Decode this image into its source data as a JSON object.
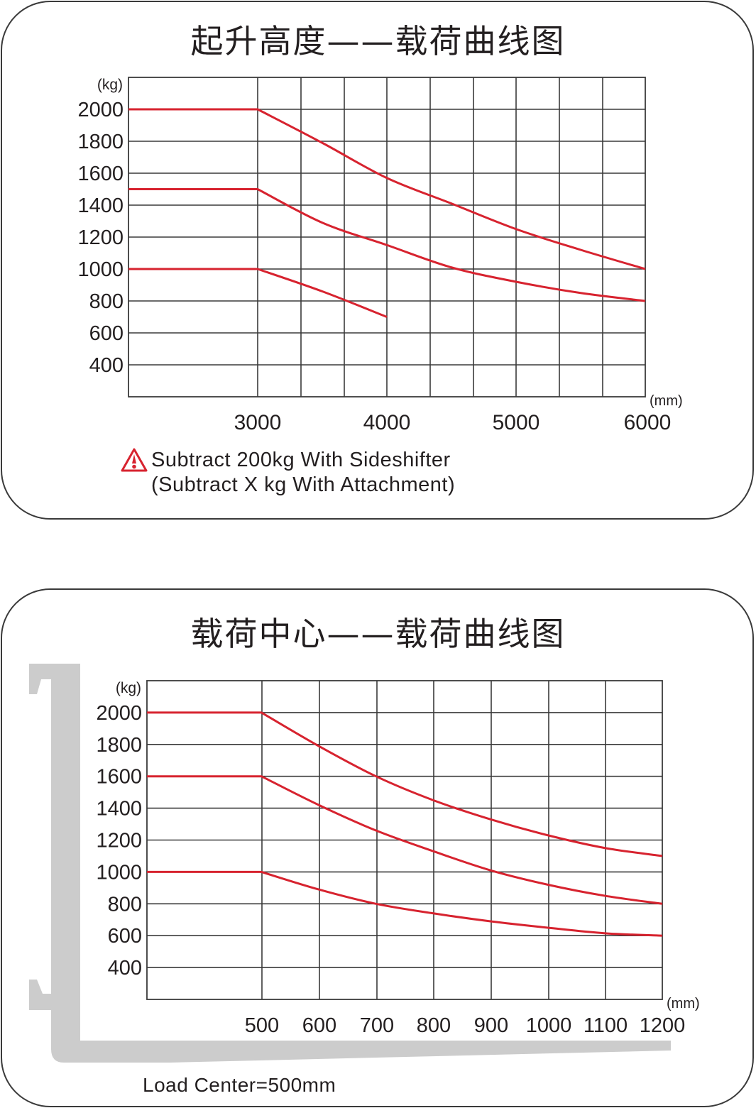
{
  "charts": [
    {
      "title": "起升高度——载荷曲线图",
      "y_unit": "(kg)",
      "x_unit": "(mm)",
      "y_ticks": [
        "2000",
        "1800",
        "1600",
        "1400",
        "1200",
        "1000",
        "800",
        "600",
        "400"
      ],
      "x_ticks": [
        "3000",
        "4000",
        "5000",
        "6000"
      ],
      "note_line1": "Subtract 200kg With Sideshifter",
      "note_line2": "(Subtract X kg With Attachment)"
    },
    {
      "title": "载荷中心——载荷曲线图",
      "y_unit": "(kg)",
      "x_unit": "(mm)",
      "y_ticks": [
        "2000",
        "1800",
        "1600",
        "1400",
        "1200",
        "1000",
        "800",
        "600",
        "400"
      ],
      "x_ticks": [
        "500",
        "600",
        "700",
        "800",
        "900",
        "1000",
        "1100",
        "1200"
      ],
      "footer": "Load Center=500mm"
    }
  ],
  "colors": {
    "curve": "#d7232f",
    "grid": "#3a3a3a",
    "fork": "#cccccc",
    "text": "#231f20"
  },
  "chart_data": [
    {
      "type": "line",
      "title": "起升高度——载荷曲线图",
      "xlabel": "Lift height (mm)",
      "ylabel": "Load (kg)",
      "xlim": [
        2000,
        6000
      ],
      "ylim": [
        200,
        2200
      ],
      "grid": true,
      "x_tick_labels": [
        3000,
        4000,
        5000,
        6000
      ],
      "y_tick_labels": [
        2000,
        1800,
        1600,
        1400,
        1200,
        1000,
        800,
        600,
        400
      ],
      "series": [
        {
          "name": "2000 kg rated",
          "x": [
            2000,
            3000,
            3500,
            4000,
            4500,
            5000,
            5500,
            6000
          ],
          "values": [
            2000,
            2000,
            1790,
            1570,
            1410,
            1250,
            1120,
            1000
          ]
        },
        {
          "name": "1500 kg rated",
          "x": [
            2000,
            3000,
            3500,
            4000,
            4500,
            5000,
            5500,
            6000
          ],
          "values": [
            1500,
            1500,
            1290,
            1150,
            1010,
            920,
            850,
            800
          ]
        },
        {
          "name": "1000 kg rated",
          "x": [
            2000,
            3000,
            3500,
            4000
          ],
          "values": [
            1000,
            1000,
            860,
            700
          ]
        }
      ],
      "annotations": [
        "Subtract 200kg With Sideshifter",
        "(Subtract X kg With Attachment)"
      ]
    },
    {
      "type": "line",
      "title": "载荷中心——载荷曲线图",
      "xlabel": "Load center (mm)",
      "ylabel": "Load (kg)",
      "xlim": [
        300,
        1200
      ],
      "ylim": [
        200,
        2200
      ],
      "grid": true,
      "x_tick_labels": [
        500,
        600,
        700,
        800,
        900,
        1000,
        1100,
        1200
      ],
      "y_tick_labels": [
        2000,
        1800,
        1600,
        1400,
        1200,
        1000,
        800,
        600,
        400
      ],
      "series": [
        {
          "name": "2000 kg rated",
          "x": [
            300,
            500,
            600,
            700,
            800,
            900,
            1000,
            1100,
            1200
          ],
          "values": [
            2000,
            2000,
            1790,
            1600,
            1450,
            1330,
            1230,
            1150,
            1100
          ]
        },
        {
          "name": "1600 kg rated",
          "x": [
            300,
            500,
            600,
            700,
            800,
            900,
            1000,
            1100,
            1200
          ],
          "values": [
            1600,
            1600,
            1420,
            1260,
            1130,
            1010,
            920,
            850,
            800
          ]
        },
        {
          "name": "1000 kg rated",
          "x": [
            300,
            500,
            600,
            700,
            800,
            900,
            1000,
            1100,
            1200
          ],
          "values": [
            1000,
            1000,
            890,
            800,
            740,
            690,
            650,
            615,
            600
          ]
        }
      ],
      "annotations": [
        "Load Center=500mm"
      ]
    }
  ]
}
